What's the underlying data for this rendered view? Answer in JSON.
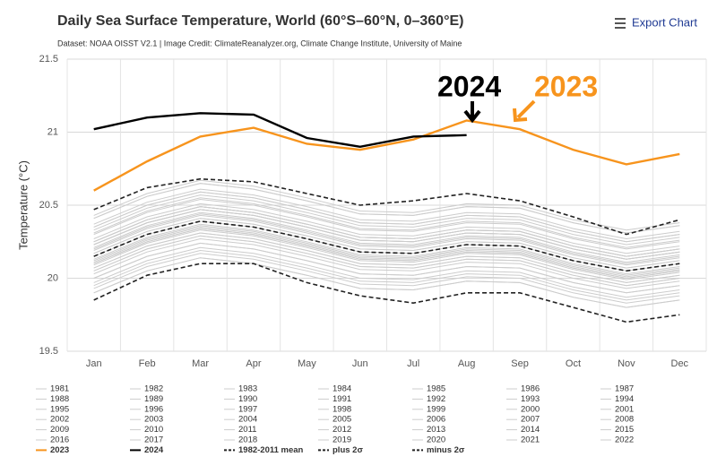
{
  "chart_data": {
    "type": "line",
    "title": "Daily Sea Surface Temperature, World (60°S–60°N, 0–360°E)",
    "subtitle": "Dataset: NOAA OISST V2.1 | Image Credit: ClimateReanalyzer.org, Climate Change Institute, University of Maine",
    "export_label": "Export Chart",
    "y_label": "Temperature (°C)",
    "annotations": [
      {
        "text": "2024"
      },
      {
        "text": "2023"
      }
    ],
    "categories": [
      "Jan",
      "Feb",
      "Mar",
      "Apr",
      "May",
      "Jun",
      "Jul",
      "Aug",
      "Sep",
      "Oct",
      "Nov",
      "Dec"
    ],
    "ylim": [
      19.5,
      21.5
    ],
    "yticks": [
      19.5,
      20,
      20.5,
      21,
      21.5
    ],
    "grid": true,
    "series": [
      {
        "name": "1981",
        "color": "#cccccc",
        "values": [
          19.9,
          20.05,
          20.14,
          20.1,
          20.02,
          19.93,
          19.92,
          19.98,
          19.97,
          19.87,
          19.8,
          19.85
        ]
      },
      {
        "name": "1982",
        "color": "#cccccc",
        "values": [
          19.95,
          20.1,
          20.19,
          20.15,
          20.07,
          19.98,
          19.97,
          20.03,
          20.02,
          19.92,
          19.85,
          19.9
        ]
      },
      {
        "name": "1983",
        "color": "#cccccc",
        "values": [
          20.05,
          20.2,
          20.29,
          20.25,
          20.17,
          20.08,
          20.07,
          20.13,
          20.12,
          20.02,
          19.95,
          20.0
        ]
      },
      {
        "name": "1984",
        "color": "#cccccc",
        "values": [
          19.93,
          20.08,
          20.17,
          20.13,
          20.05,
          19.96,
          19.95,
          20.01,
          20.0,
          19.9,
          19.83,
          19.88
        ]
      },
      {
        "name": "1985",
        "color": "#cccccc",
        "values": [
          19.9,
          20.05,
          20.14,
          20.1,
          20.02,
          19.93,
          19.92,
          19.98,
          19.97,
          19.87,
          19.8,
          19.85
        ]
      },
      {
        "name": "1986",
        "color": "#cccccc",
        "values": [
          19.97,
          20.12,
          20.21,
          20.17,
          20.09,
          20.0,
          19.99,
          20.05,
          20.04,
          19.94,
          19.87,
          19.92
        ]
      },
      {
        "name": "1987",
        "color": "#cccccc",
        "values": [
          20.1,
          20.25,
          20.34,
          20.3,
          20.22,
          20.13,
          20.12,
          20.18,
          20.17,
          20.07,
          20.0,
          20.05
        ]
      },
      {
        "name": "1988",
        "color": "#cccccc",
        "values": [
          20.05,
          20.2,
          20.29,
          20.25,
          20.17,
          20.08,
          20.07,
          20.13,
          20.12,
          20.02,
          19.95,
          20.0
        ]
      },
      {
        "name": "1989",
        "color": "#cccccc",
        "values": [
          20.0,
          20.15,
          20.24,
          20.2,
          20.12,
          20.03,
          20.02,
          20.08,
          20.07,
          19.97,
          19.9,
          19.95
        ]
      },
      {
        "name": "1990",
        "color": "#cccccc",
        "values": [
          20.1,
          20.25,
          20.34,
          20.3,
          20.22,
          20.13,
          20.12,
          20.18,
          20.17,
          20.07,
          20.0,
          20.05
        ]
      },
      {
        "name": "1991",
        "color": "#cccccc",
        "values": [
          20.07,
          20.22,
          20.31,
          20.27,
          20.19,
          20.1,
          20.09,
          20.15,
          20.14,
          20.04,
          19.97,
          20.02
        ]
      },
      {
        "name": "1992",
        "color": "#cccccc",
        "values": [
          20.0,
          20.15,
          20.24,
          20.2,
          20.12,
          20.03,
          20.02,
          20.08,
          20.07,
          19.97,
          19.9,
          19.95
        ]
      },
      {
        "name": "1993",
        "color": "#cccccc",
        "values": [
          20.03,
          20.18,
          20.27,
          20.23,
          20.15,
          20.06,
          20.05,
          20.11,
          20.1,
          20.0,
          19.93,
          19.98
        ]
      },
      {
        "name": "1994",
        "color": "#cccccc",
        "values": [
          20.07,
          20.22,
          20.31,
          20.27,
          20.19,
          20.1,
          20.09,
          20.15,
          20.14,
          20.04,
          19.97,
          20.02
        ]
      },
      {
        "name": "1995",
        "color": "#cccccc",
        "values": [
          20.13,
          20.28,
          20.37,
          20.33,
          20.25,
          20.16,
          20.15,
          20.21,
          20.2,
          20.1,
          20.03,
          20.08
        ]
      },
      {
        "name": "1996",
        "color": "#cccccc",
        "values": [
          20.09,
          20.24,
          20.33,
          20.29,
          20.21,
          20.12,
          20.11,
          20.17,
          20.16,
          20.06,
          19.99,
          20.04
        ]
      },
      {
        "name": "1997",
        "color": "#cccccc",
        "values": [
          20.23,
          20.38,
          20.47,
          20.43,
          20.35,
          20.26,
          20.25,
          20.31,
          20.3,
          20.2,
          20.13,
          20.18
        ]
      },
      {
        "name": "1998",
        "color": "#cccccc",
        "values": [
          20.25,
          20.4,
          20.49,
          20.45,
          20.37,
          20.28,
          20.27,
          20.33,
          20.32,
          20.22,
          20.15,
          20.2
        ]
      },
      {
        "name": "1999",
        "color": "#cccccc",
        "values": [
          20.11,
          20.26,
          20.35,
          20.31,
          20.23,
          20.14,
          20.13,
          20.19,
          20.18,
          20.08,
          20.01,
          20.06
        ]
      },
      {
        "name": "2000",
        "color": "#cccccc",
        "values": [
          20.12,
          20.27,
          20.36,
          20.32,
          20.24,
          20.15,
          20.14,
          20.2,
          20.19,
          20.09,
          20.02,
          20.07
        ]
      },
      {
        "name": "2001",
        "color": "#cccccc",
        "values": [
          20.19,
          20.34,
          20.43,
          20.39,
          20.31,
          20.22,
          20.21,
          20.27,
          20.26,
          20.16,
          20.09,
          20.14
        ]
      },
      {
        "name": "2002",
        "color": "#cccccc",
        "values": [
          20.21,
          20.36,
          20.45,
          20.41,
          20.33,
          20.24,
          20.23,
          20.29,
          20.28,
          20.18,
          20.11,
          20.16
        ]
      },
      {
        "name": "2003",
        "color": "#cccccc",
        "values": [
          20.23,
          20.38,
          20.47,
          20.43,
          20.35,
          20.26,
          20.25,
          20.31,
          20.3,
          20.2,
          20.13,
          20.18
        ]
      },
      {
        "name": "2004",
        "color": "#cccccc",
        "values": [
          20.2,
          20.35,
          20.44,
          20.4,
          20.32,
          20.23,
          20.22,
          20.28,
          20.27,
          20.17,
          20.1,
          20.15
        ]
      },
      {
        "name": "2005",
        "color": "#cccccc",
        "values": [
          20.25,
          20.4,
          20.49,
          20.45,
          20.37,
          20.28,
          20.27,
          20.33,
          20.32,
          20.22,
          20.15,
          20.2
        ]
      },
      {
        "name": "2006",
        "color": "#cccccc",
        "values": [
          20.23,
          20.38,
          20.47,
          20.43,
          20.35,
          20.26,
          20.25,
          20.31,
          20.3,
          20.2,
          20.13,
          20.18
        ]
      },
      {
        "name": "2007",
        "color": "#cccccc",
        "values": [
          20.17,
          20.32,
          20.41,
          20.37,
          20.29,
          20.2,
          20.19,
          20.25,
          20.24,
          20.14,
          20.07,
          20.12
        ]
      },
      {
        "name": "2008",
        "color": "#cccccc",
        "values": [
          20.15,
          20.3,
          20.39,
          20.35,
          20.27,
          20.18,
          20.17,
          20.23,
          20.22,
          20.12,
          20.05,
          20.1
        ]
      },
      {
        "name": "2009",
        "color": "#cccccc",
        "values": [
          20.25,
          20.4,
          20.49,
          20.45,
          20.37,
          20.28,
          20.27,
          20.33,
          20.32,
          20.22,
          20.15,
          20.2
        ]
      },
      {
        "name": "2010",
        "color": "#cccccc",
        "values": [
          20.27,
          20.42,
          20.51,
          20.47,
          20.39,
          20.3,
          20.29,
          20.35,
          20.34,
          20.24,
          20.17,
          20.22
        ]
      },
      {
        "name": "2011",
        "color": "#cccccc",
        "values": [
          20.17,
          20.32,
          20.41,
          20.37,
          20.29,
          20.2,
          20.19,
          20.25,
          20.24,
          20.14,
          20.07,
          20.12
        ]
      },
      {
        "name": "2012",
        "color": "#cccccc",
        "values": [
          20.23,
          20.38,
          20.47,
          20.43,
          20.35,
          20.26,
          20.25,
          20.31,
          20.3,
          20.2,
          20.13,
          20.18
        ]
      },
      {
        "name": "2013",
        "color": "#cccccc",
        "values": [
          20.25,
          20.4,
          20.49,
          20.45,
          20.37,
          20.28,
          20.27,
          20.33,
          20.32,
          20.22,
          20.15,
          20.2
        ]
      },
      {
        "name": "2014",
        "color": "#cccccc",
        "values": [
          20.3,
          20.45,
          20.54,
          20.5,
          20.42,
          20.33,
          20.32,
          20.38,
          20.37,
          20.27,
          20.2,
          20.25
        ]
      },
      {
        "name": "2015",
        "color": "#cccccc",
        "values": [
          20.37,
          20.52,
          20.61,
          20.57,
          20.49,
          20.4,
          20.39,
          20.45,
          20.44,
          20.34,
          20.27,
          20.32
        ]
      },
      {
        "name": "2016",
        "color": "#cccccc",
        "values": [
          20.43,
          20.58,
          20.67,
          20.63,
          20.55,
          20.46,
          20.45,
          20.51,
          20.5,
          20.4,
          20.33,
          20.38
        ]
      },
      {
        "name": "2017",
        "color": "#cccccc",
        "values": [
          20.35,
          20.5,
          20.59,
          20.55,
          20.47,
          20.38,
          20.37,
          20.43,
          20.42,
          20.32,
          20.25,
          20.3
        ]
      },
      {
        "name": "2018",
        "color": "#cccccc",
        "values": [
          20.31,
          20.46,
          20.55,
          20.51,
          20.43,
          20.34,
          20.33,
          20.39,
          20.38,
          20.28,
          20.21,
          20.26
        ]
      },
      {
        "name": "2019",
        "color": "#cccccc",
        "values": [
          20.41,
          20.56,
          20.65,
          20.61,
          20.53,
          20.44,
          20.43,
          20.49,
          20.48,
          20.38,
          20.31,
          20.36
        ]
      },
      {
        "name": "2020",
        "color": "#cccccc",
        "values": [
          20.41,
          20.56,
          20.65,
          20.61,
          20.53,
          20.44,
          20.43,
          20.49,
          20.48,
          20.38,
          20.31,
          20.36
        ]
      },
      {
        "name": "2021",
        "color": "#cccccc",
        "values": [
          20.33,
          20.48,
          20.57,
          20.53,
          20.45,
          20.36,
          20.35,
          20.41,
          20.4,
          20.3,
          20.23,
          20.28
        ]
      },
      {
        "name": "2022",
        "color": "#cccccc",
        "values": [
          20.35,
          20.5,
          20.59,
          20.55,
          20.47,
          20.38,
          20.37,
          20.43,
          20.42,
          20.32,
          20.25,
          20.3
        ]
      },
      {
        "name": "2023",
        "color": "#f7941d",
        "values": [
          20.6,
          20.8,
          20.97,
          21.03,
          20.92,
          20.88,
          20.95,
          21.08,
          21.02,
          20.88,
          20.78,
          20.85
        ]
      },
      {
        "name": "2024",
        "color": "#000000",
        "values": [
          21.02,
          21.1,
          21.13,
          21.12,
          20.96,
          20.9,
          20.97,
          20.98,
          null,
          null,
          null,
          null
        ]
      },
      {
        "name": "1982-2011 mean",
        "color": "#222222",
        "dash": "dashed",
        "values": [
          20.15,
          20.3,
          20.39,
          20.35,
          20.27,
          20.18,
          20.17,
          20.23,
          20.22,
          20.12,
          20.05,
          20.1
        ]
      },
      {
        "name": "plus 2σ",
        "color": "#222222",
        "dash": "dashed",
        "values": [
          20.47,
          20.62,
          20.68,
          20.66,
          20.58,
          20.5,
          20.53,
          20.58,
          20.53,
          20.42,
          20.3,
          20.4
        ]
      },
      {
        "name": "minus 2σ",
        "color": "#222222",
        "dash": "dashed",
        "values": [
          19.85,
          20.02,
          20.1,
          20.1,
          19.97,
          19.88,
          19.83,
          19.9,
          19.9,
          19.8,
          19.7,
          19.75
        ]
      }
    ]
  }
}
